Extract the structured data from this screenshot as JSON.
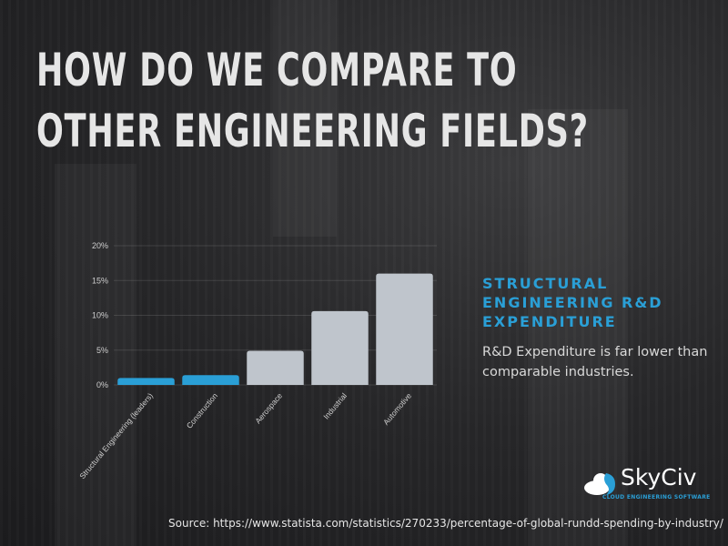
{
  "title_lines": [
    "HOW DO WE COMPARE TO",
    "OTHER ENGINEERING FIELDS?"
  ],
  "side": {
    "heading": "STRUCTURAL ENGINEERING R&D EXPENDITURE",
    "text": "R&D Expenditure is far lower than comparable industries."
  },
  "logo": {
    "name": "SkyCiv",
    "tagline": "CLOUD ENGINEERING SOFTWARE"
  },
  "source": "Source: https://www.statista.com/statistics/270233/percentage-of-global-rundd-spending-by-industry/",
  "chart_data": {
    "type": "bar",
    "categories": [
      "Structural Engineering (leaders)",
      "Construction",
      "Aerospace",
      "Industrial",
      "Automotive"
    ],
    "values": [
      1.0,
      1.4,
      4.9,
      10.6,
      16.0
    ],
    "colors": [
      "#2a9fd6",
      "#2a9fd6",
      "#bfc5cc",
      "#bfc5cc",
      "#bfc5cc"
    ],
    "ylim": [
      0,
      20
    ],
    "yticks": [
      0,
      5,
      10,
      15,
      20
    ],
    "ytick_labels": [
      "0%",
      "5%",
      "10%",
      "15%",
      "20%"
    ],
    "grid": true,
    "title": "",
    "xlabel": "",
    "ylabel": ""
  }
}
